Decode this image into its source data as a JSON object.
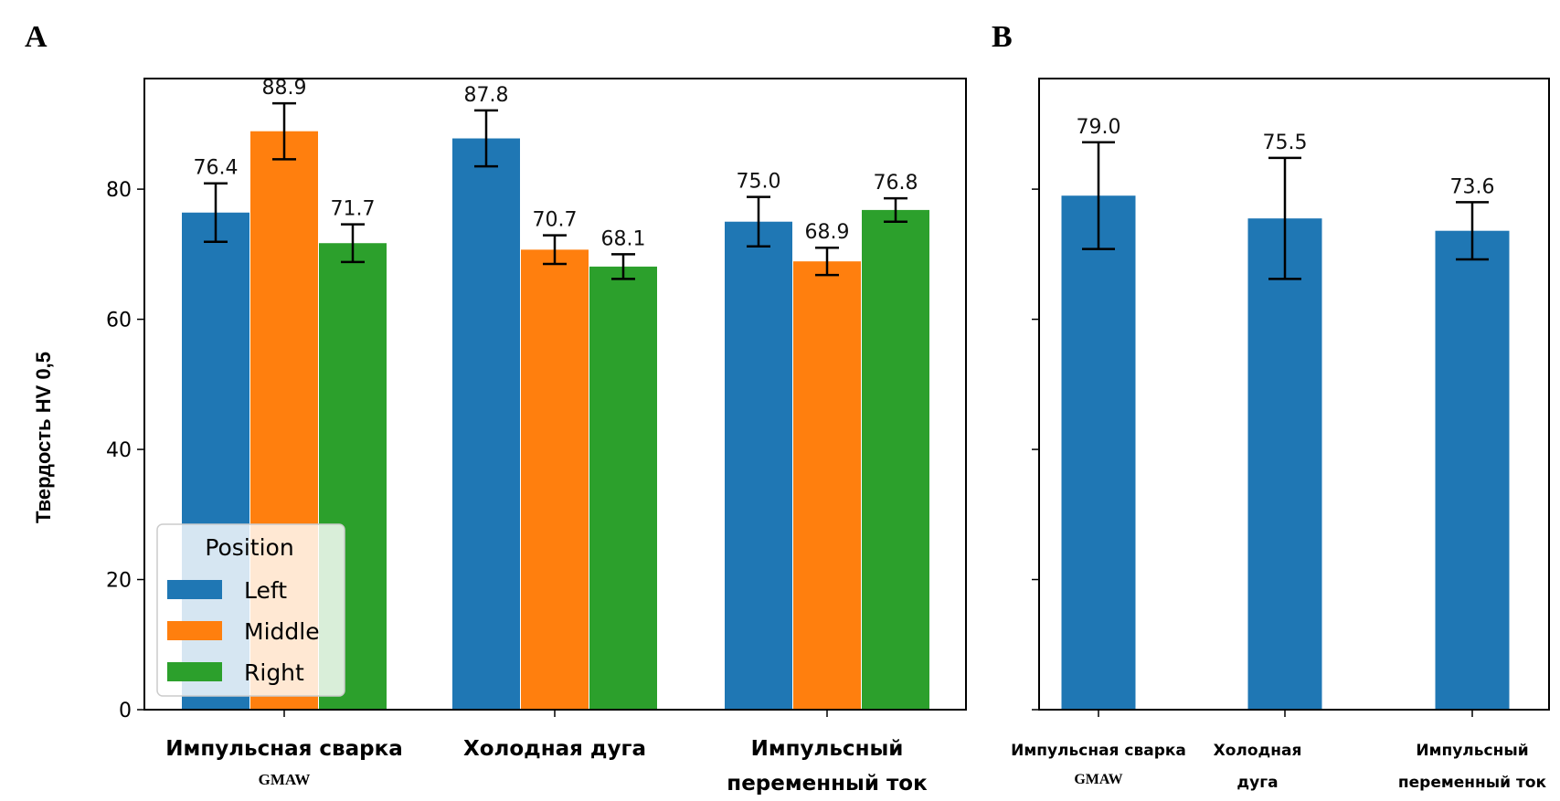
{
  "chart_data": [
    {
      "panel": "A",
      "type": "bar",
      "ylabel": "Твердость HV 0,5",
      "ylim": [
        0,
        97
      ],
      "yticks": [
        0,
        20,
        40,
        60,
        80
      ],
      "categories": [
        [
          "Импульсная сварка",
          "GMAW"
        ],
        [
          "Холодная дуга"
        ],
        [
          "Импульсный",
          "переменный ток"
        ]
      ],
      "series": [
        {
          "name": "Left",
          "color": "#1f77b4",
          "values": [
            76.4,
            87.8,
            75.0
          ],
          "errors": [
            4.5,
            4.3,
            3.8
          ]
        },
        {
          "name": "Middle",
          "color": "#ff7f0e",
          "values": [
            88.9,
            70.7,
            68.9
          ],
          "errors": [
            4.3,
            2.2,
            2.1
          ]
        },
        {
          "name": "Right",
          "color": "#2ca02c",
          "values": [
            71.7,
            68.1,
            76.8
          ],
          "errors": [
            2.9,
            1.9,
            1.8
          ]
        }
      ],
      "data_labels": [
        [
          "76.4",
          "87.8",
          "75.0"
        ],
        [
          "88.9",
          "70.7",
          "68.9"
        ],
        [
          "71.7",
          "68.1",
          "76.8"
        ]
      ],
      "legend": {
        "title": "Position",
        "placement": "lower-left"
      },
      "grid": false
    },
    {
      "panel": "B",
      "type": "bar",
      "ylim": [
        0,
        97
      ],
      "yticks": [
        0,
        20,
        40,
        60,
        80
      ],
      "categories": [
        [
          "Импульсная сварка",
          "GMAW"
        ],
        [
          "Холодная",
          "дуга"
        ],
        [
          "Импульсный",
          "переменный ток"
        ]
      ],
      "series": [
        {
          "color": "#1f77b4",
          "values": [
            79.0,
            75.5,
            73.6
          ],
          "errors": [
            8.2,
            9.3,
            4.4
          ]
        }
      ],
      "data_labels": [
        [
          "79.0",
          "75.5",
          "73.6"
        ]
      ],
      "grid": false
    }
  ]
}
